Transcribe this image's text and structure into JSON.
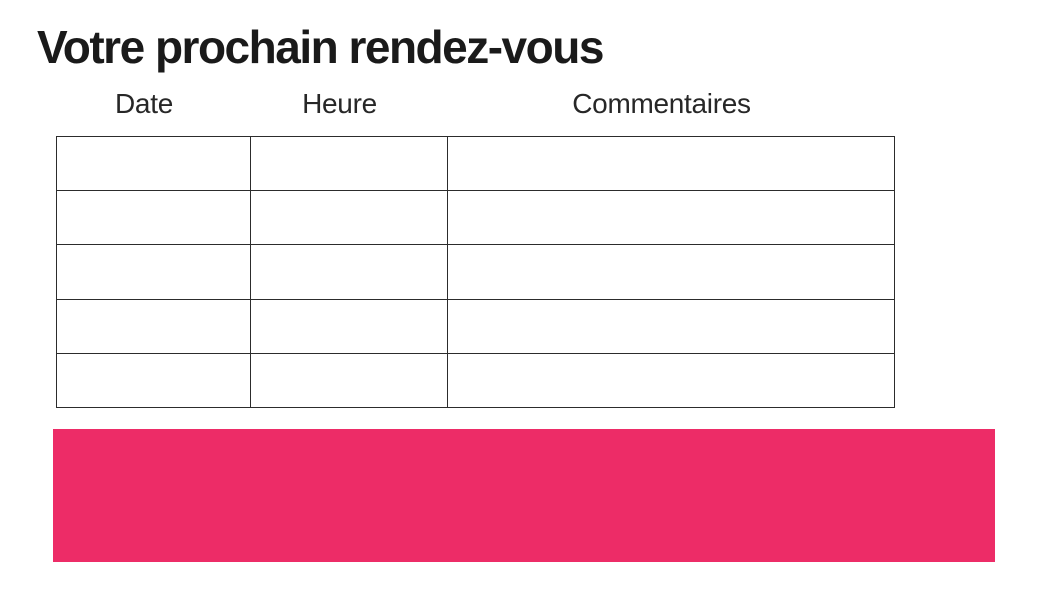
{
  "page": {
    "title": "Votre prochain rendez-vous"
  },
  "table": {
    "columns": [
      {
        "label": "Date"
      },
      {
        "label": "Heure"
      },
      {
        "label": "Commentaires"
      }
    ],
    "row_count": 5,
    "rows": [
      {
        "date": "",
        "heure": "",
        "commentaires": ""
      },
      {
        "date": "",
        "heure": "",
        "commentaires": ""
      },
      {
        "date": "",
        "heure": "",
        "commentaires": ""
      },
      {
        "date": "",
        "heure": "",
        "commentaires": ""
      },
      {
        "date": "",
        "heure": "",
        "commentaires": ""
      }
    ]
  },
  "colors": {
    "accent_pink": "#ED2C67",
    "table_border": "#2c2c2c",
    "title_text": "#1a1a1a",
    "header_text": "#272727",
    "background": "#ffffff"
  }
}
